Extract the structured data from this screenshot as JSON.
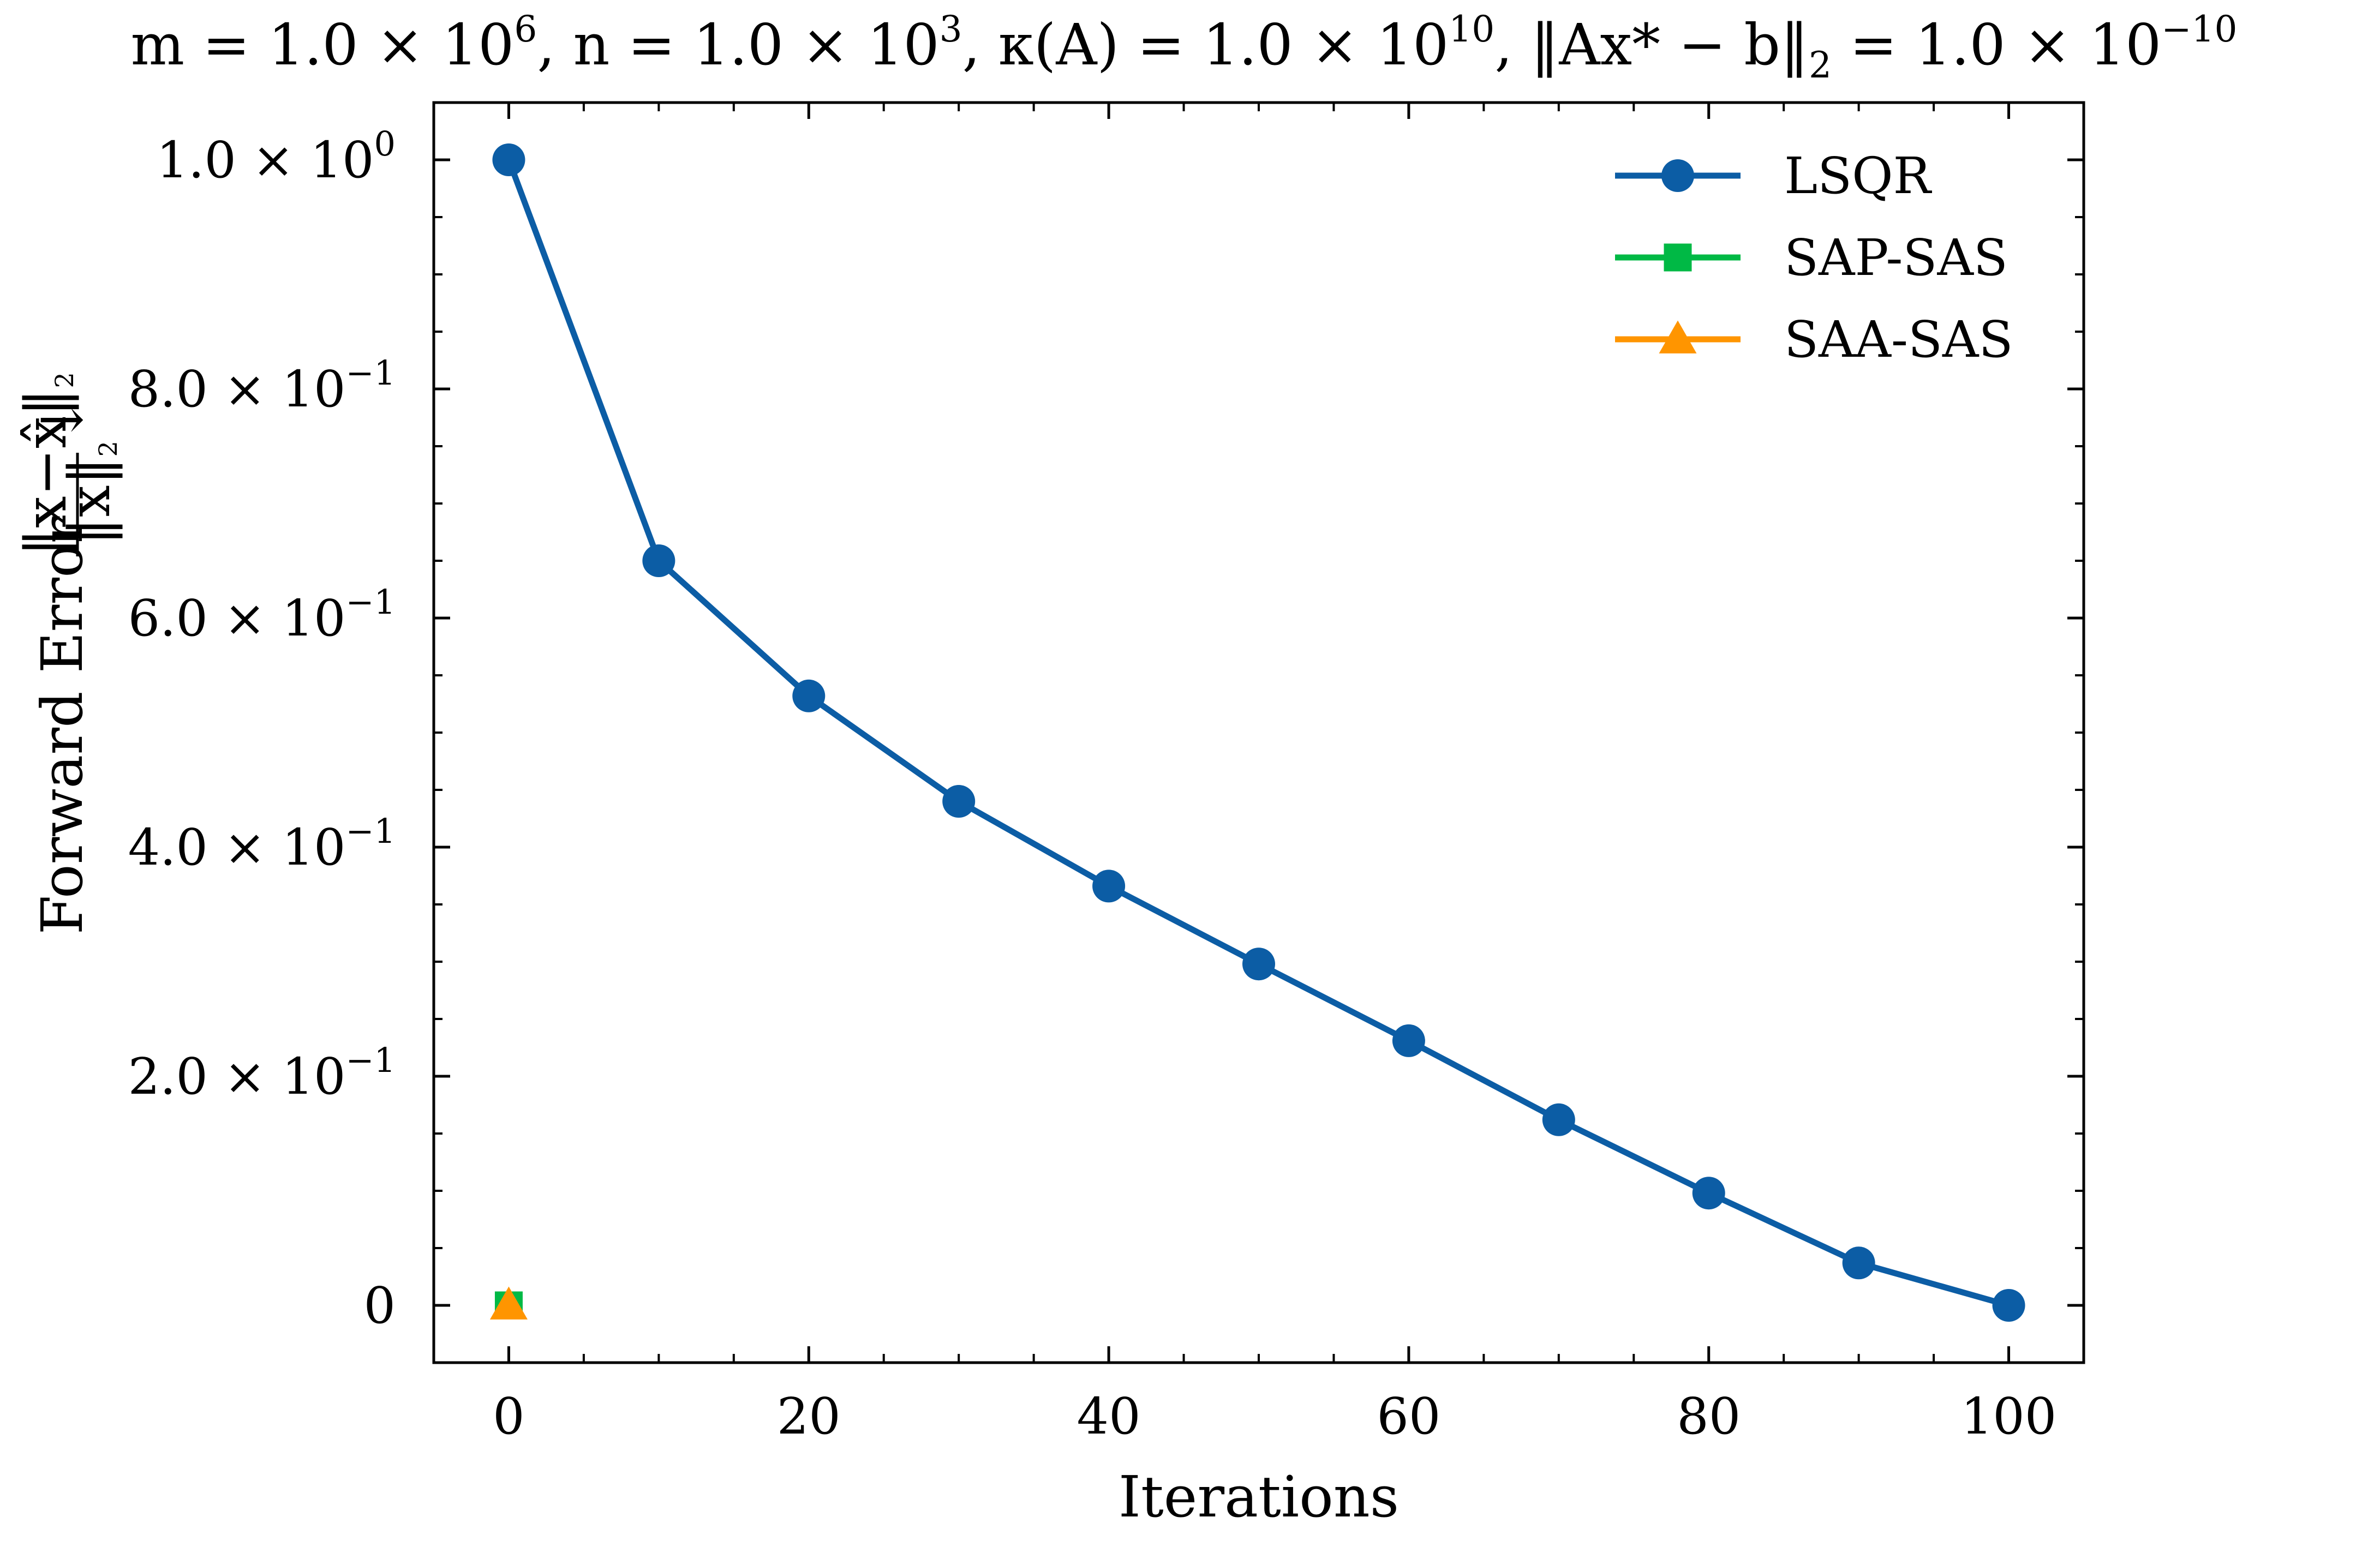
{
  "chart_data": {
    "type": "line",
    "title_parts": {
      "m": "m = 1.0 × 10",
      "m_exp": "6",
      "n": ", n = 1.0 × 10",
      "n_exp": "3",
      "kappa": ", κ(A) = 1.0 × 10",
      "kappa_exp": "10",
      "res": ", ‖Ax* − b‖",
      "res_sub": "2",
      "res_val": " = 1.0 × 10",
      "res_exp": "−10"
    },
    "xlabel": "Iterations",
    "ylabel_parts": {
      "text": "Forward Error",
      "numerator": "‖x−x̂‖",
      "numerator_sub": "2",
      "denominator": "‖x‖",
      "denominator_sub": "2",
      "arrow": "↓"
    },
    "xlim": [
      -5,
      105
    ],
    "ylim": [
      -0.05,
      1.05
    ],
    "x_ticks": [
      0,
      20,
      40,
      60,
      80,
      100
    ],
    "x_tick_labels": [
      "0",
      "20",
      "40",
      "60",
      "80",
      "100"
    ],
    "y_ticks": [
      {
        "value": 0,
        "mant": "0",
        "exp": ""
      },
      {
        "value": 0.2,
        "mant": "2.0 × 10",
        "exp": "−1"
      },
      {
        "value": 0.4,
        "mant": "4.0 × 10",
        "exp": "−1"
      },
      {
        "value": 0.6,
        "mant": "6.0 × 10",
        "exp": "−1"
      },
      {
        "value": 0.8,
        "mant": "8.0 × 10",
        "exp": "−1"
      },
      {
        "value": 1.0,
        "mant": "1.0 × 10",
        "exp": "0"
      }
    ],
    "legend_position": "top-right",
    "grid": false,
    "series": [
      {
        "name": "LSQR",
        "color": "#0c5da5",
        "marker": "circle",
        "x": [
          0,
          10,
          20,
          30,
          40,
          50,
          60,
          70,
          80,
          90,
          100
        ],
        "y": [
          1.0,
          0.65,
          0.532,
          0.44,
          0.366,
          0.298,
          0.231,
          0.162,
          0.098,
          0.037,
          0.0
        ]
      },
      {
        "name": "SAP-SAS",
        "color": "#00b945",
        "marker": "square",
        "x": [
          0
        ],
        "y": [
          0.0
        ]
      },
      {
        "name": "SAA-SAS",
        "color": "#ff9500",
        "marker": "triangle",
        "x": [
          0
        ],
        "y": [
          0.0
        ]
      }
    ]
  }
}
